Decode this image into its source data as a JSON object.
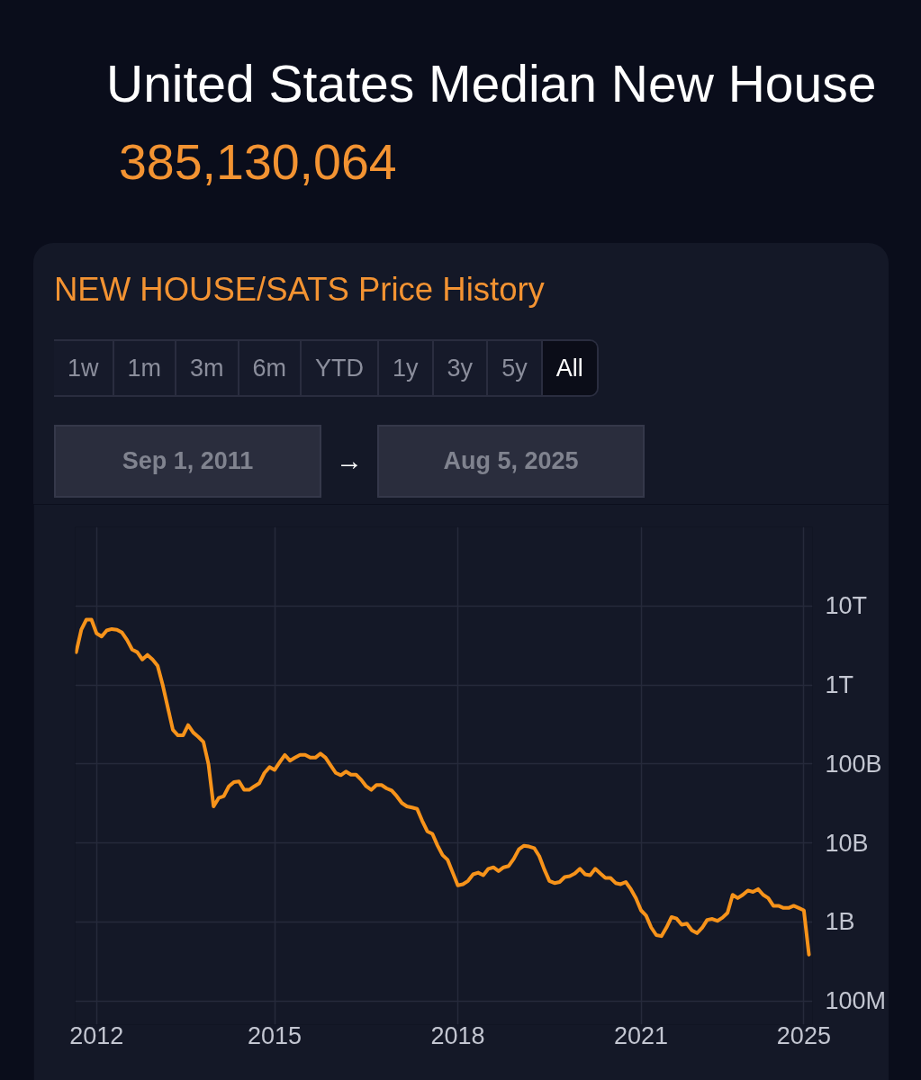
{
  "chart_data": {
    "type": "line",
    "title": "United States Median New House",
    "subtitle": "NEW HOUSE/SATS Price History",
    "annotations": [
      "385,130,064",
      "1w",
      "1m",
      "3m",
      "6m",
      "YTD",
      "1y",
      "3y",
      "5y",
      "All",
      "Sep 1, 2011",
      "→",
      "Aug 5, 2025"
    ],
    "categories": [
      null,
      null,
      null,
      null,
      "2012",
      null,
      null,
      null,
      null,
      null,
      null,
      null,
      null,
      null,
      null,
      null,
      null,
      null,
      null,
      null,
      null,
      null,
      null,
      null,
      null,
      null,
      null,
      null,
      null,
      null,
      null,
      null,
      null,
      null,
      null,
      null,
      null,
      null,
      null,
      "2015",
      null,
      null,
      null,
      null,
      null,
      null,
      null,
      null,
      null,
      null,
      null,
      null,
      null,
      null,
      null,
      null,
      null,
      null,
      null,
      null,
      null,
      null,
      null,
      null,
      null,
      null,
      null,
      null,
      null,
      null,
      null,
      null,
      null,
      null,
      null,
      "2018",
      null,
      null,
      null,
      null,
      null,
      null,
      null,
      null,
      null,
      null,
      null,
      null,
      null,
      null,
      null,
      null,
      null,
      null,
      null,
      null,
      null,
      null,
      null,
      null,
      null,
      null,
      null,
      null,
      null,
      null,
      null,
      null,
      null,
      null,
      null,
      "2021",
      null,
      null,
      null,
      null,
      null,
      null,
      null,
      null,
      null,
      null,
      null,
      null,
      null,
      null,
      null,
      null,
      null,
      null,
      null,
      null,
      null,
      null,
      null,
      null,
      null,
      null,
      null,
      null,
      null,
      null,
      null,
      "2025",
      null
    ],
    "series": [
      {
        "color": "#f7931a",
        "values": [
          2600000000000.0,
          5000000000000.0,
          6700000000000.0,
          6700000000000.0,
          4500000000000.0,
          4100000000000.0,
          4900000000000.0,
          5100000000000.0,
          5000000000000.0,
          4600000000000.0,
          3700000000000.0,
          2800000000000.0,
          2600000000000.0,
          2100000000000.0,
          2400000000000.0,
          2100000000000.0,
          1750000000000.0,
          1000000000000.0,
          520000000000.0,
          270000000000.0,
          230000000000.0,
          230000000000.0,
          310000000000.0,
          250000000000.0,
          220000000000.0,
          190000000000.0,
          99000000000.0,
          29000000000.0,
          37000000000.0,
          39000000000.0,
          52000000000.0,
          59000000000.0,
          60000000000.0,
          47000000000.0,
          47000000000.0,
          52000000000.0,
          57000000000.0,
          77000000000.0,
          91000000000.0,
          84000000000.0,
          105000000000.0,
          130000000000.0,
          110000000000.0,
          120000000000.0,
          130000000000.0,
          130000000000.0,
          120000000000.0,
          120000000000.0,
          135000000000.0,
          120000000000.0,
          96000000000.0,
          77000000000.0,
          72000000000.0,
          80000000000.0,
          73000000000.0,
          73000000000.0,
          63000000000.0,
          52000000000.0,
          47000000000.0,
          54000000000.0,
          54000000000.0,
          49000000000.0,
          46000000000.0,
          39000000000.0,
          32000000000.0,
          29000000000.0,
          28000000000.0,
          27000000000.0,
          19000000000.0,
          14000000000.0,
          13000000000.0,
          9300000000.0,
          7000000000.0,
          6100000000.0,
          4200000000.0,
          2900000000.0,
          3000000000.0,
          3300000000.0,
          4000000000.0,
          4200000000.0,
          3900000000.0,
          4700000000.0,
          4900000000.0,
          4400000000.0,
          4900000000.0,
          5100000000.0,
          6300000000.0,
          8300000000.0,
          9200000000.0,
          9000000000.0,
          8600000000.0,
          6800000000.0,
          4600000000.0,
          3300000000.0,
          3100000000.0,
          3200000000.0,
          3700000000.0,
          3800000000.0,
          4100000000.0,
          4700000000.0,
          4000000000.0,
          3900000000.0,
          4700000000.0,
          4100000000.0,
          3600000000.0,
          3600000000.0,
          3100000000.0,
          3000000000.0,
          3200000000.0,
          2600000000.0,
          2000000000.0,
          1400000000.0,
          1200000000.0,
          850000000.0,
          680000000.0,
          660000000.0,
          850000000.0,
          1150000000.0,
          1100000000.0,
          920000000.0,
          950000000.0,
          780000000.0,
          720000000.0,
          840000000.0,
          1060000000.0,
          1090000000.0,
          1030000000.0,
          1130000000.0,
          1300000000.0,
          2200000000.0,
          2000000000.0,
          2200000000.0,
          2500000000.0,
          2400000000.0,
          2600000000.0,
          2200000000.0,
          2000000000.0,
          1600000000.0,
          1600000000.0,
          1500000000.0,
          1500000000.0,
          1600000000.0,
          1500000000.0,
          1400000000.0,
          385130064
        ]
      }
    ],
    "ylim": [
      50000000.0,
      100000000000000.0
    ],
    "yticks": [
      {
        "value": 100000000.0,
        "label": "100M"
      },
      {
        "value": 1000000000.0,
        "label": "1B"
      },
      {
        "value": 10000000000.0,
        "label": "10B"
      },
      {
        "value": 100000000000.0,
        "label": "100B"
      },
      {
        "value": 1000000000000.0,
        "label": "1T"
      },
      {
        "value": 10000000000000.0,
        "label": "10T"
      },
      {
        "value": 100000000000000.0,
        "label": null
      }
    ],
    "log": true,
    "grid": true,
    "line_style": "solid"
  }
}
